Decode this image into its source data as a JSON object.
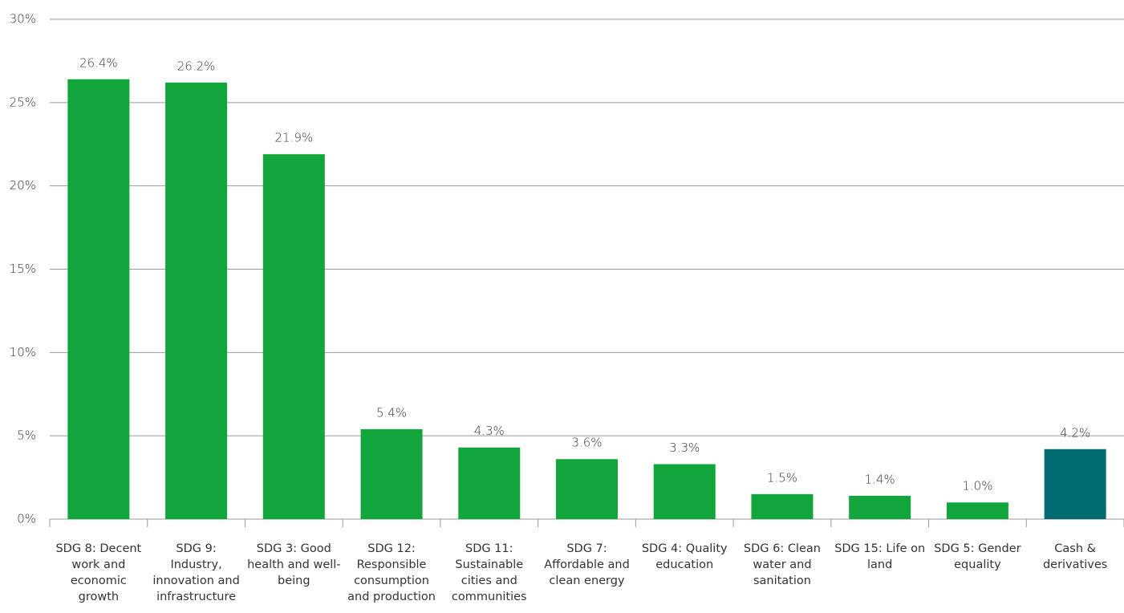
{
  "chart_data": {
    "type": "bar",
    "categories": [
      "SDG 8: Decent work and economic growth",
      "SDG 9: Industry, innovation and infrastructure",
      "SDG 3: Good health and well-being",
      "SDG 12: Responsible consumption and production",
      "SDG 11: Sustainable cities and communities",
      "SDG 7: Affordable and clean energy",
      "SDG 4: Quality education",
      "SDG 6: Clean water and sanitation",
      "SDG 15: Life on land",
      "SDG 5: Gender equality",
      "Cash & derivatives"
    ],
    "values": [
      26.4,
      26.2,
      21.9,
      5.4,
      4.3,
      3.6,
      3.3,
      1.5,
      1.4,
      1.0,
      4.2
    ],
    "value_labels": [
      "26.4%",
      "26.2%",
      "21.9%",
      "5.4%",
      "4.3%",
      "3.6%",
      "3.3%",
      "1.5%",
      "1.4%",
      "1.0%",
      "4.2%"
    ],
    "colors": [
      "#12a53c",
      "#12a53c",
      "#12a53c",
      "#12a53c",
      "#12a53c",
      "#12a53c",
      "#12a53c",
      "#12a53c",
      "#12a53c",
      "#12a53c",
      "#006b70"
    ],
    "ylim": [
      0,
      30
    ],
    "yticks": [
      {
        "value": 0,
        "label": "0%"
      },
      {
        "value": 5,
        "label": "5%"
      },
      {
        "value": 10,
        "label": "10%"
      },
      {
        "value": 15,
        "label": "15%"
      },
      {
        "value": 20,
        "label": "20%"
      },
      {
        "value": 25,
        "label": "25%"
      },
      {
        "value": 30,
        "label": "30%"
      }
    ],
    "grid": true
  }
}
